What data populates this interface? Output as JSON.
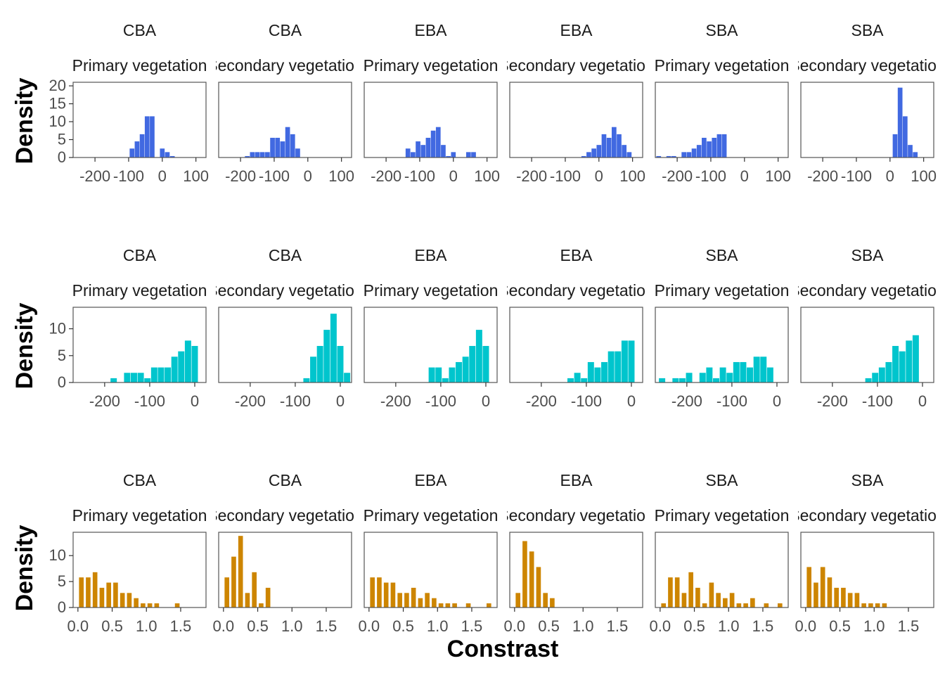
{
  "figure": {
    "x_label": "Constrast",
    "y_label": "Density",
    "colors": {
      "row1": "#4169E1",
      "row2": "#00C5CD",
      "row3": "#CD8500",
      "panel_border": "#555555",
      "axis_text": "#4D4D4D",
      "strip_text": "#1A1A1A"
    }
  },
  "chart_data": [
    {
      "type": "bar",
      "row": 1,
      "x_ticks": [
        -200,
        -100,
        0,
        100
      ],
      "x_tick_labels": [
        "-200",
        "-100",
        "0",
        "100"
      ],
      "y_ticks": [
        0,
        5,
        10,
        15,
        20
      ],
      "y_tick_labels": [
        "0",
        "5",
        "10",
        "15",
        "20"
      ],
      "xlim": [
        -265,
        130
      ],
      "ylim": [
        0,
        21
      ],
      "bin_width": 14,
      "panels": [
        {
          "strip_top": "CBA",
          "strip_bottom": "Primary vegetation",
          "x": [
            -90,
            -75,
            -60,
            -45,
            -30,
            0,
            15,
            30
          ],
          "values": [
            2.5,
            4.5,
            6.5,
            11.5,
            11.5,
            2.5,
            1.5,
            0.4
          ]
        },
        {
          "strip_top": "CBA",
          "strip_bottom": "Secondary vegetation",
          "x": [
            -180,
            -165,
            -150,
            -135,
            -120,
            -105,
            -90,
            -75,
            -60,
            -45,
            -30,
            -15,
            0
          ],
          "values": [
            0.4,
            1.5,
            1.5,
            1.5,
            1.5,
            5.5,
            5.5,
            4.5,
            8.5,
            6.5,
            2.5,
            0,
            0
          ]
        },
        {
          "strip_top": "EBA",
          "strip_bottom": "Primary vegetation",
          "x": [
            -135,
            -120,
            -105,
            -90,
            -75,
            -60,
            -45,
            -30,
            -15,
            0,
            15,
            30,
            45,
            60
          ],
          "values": [
            2.5,
            1.5,
            4.5,
            3.5,
            5.5,
            7.5,
            8.5,
            3.5,
            0.4,
            1.5,
            0,
            0,
            1.5,
            1.5
          ]
        },
        {
          "strip_top": "EBA",
          "strip_bottom": "Secondary vegetation",
          "x": [
            -45,
            -30,
            -15,
            0,
            15,
            30,
            45,
            60,
            75,
            90,
            105
          ],
          "values": [
            0.4,
            1.5,
            2.5,
            3.5,
            6.5,
            5.5,
            8.5,
            6.5,
            3.5,
            1.5,
            0
          ]
        },
        {
          "strip_top": "SBA",
          "strip_bottom": "Primary vegetation",
          "x": [
            -255,
            -225,
            -210,
            -195,
            -180,
            -165,
            -150,
            -135,
            -120,
            -105,
            -90,
            -75,
            -60,
            -45,
            -30
          ],
          "values": [
            0.4,
            0.4,
            0.4,
            0,
            1.5,
            1.5,
            2.5,
            3.5,
            5.5,
            4.5,
            5.5,
            6.5,
            6.5,
            0,
            0
          ]
        },
        {
          "strip_top": "SBA",
          "strip_bottom": "Secondary vegetation",
          "x": [
            15,
            30,
            45,
            60,
            75
          ],
          "values": [
            6.5,
            19.5,
            11.5,
            3.5,
            1.5
          ]
        }
      ]
    },
    {
      "type": "bar",
      "row": 2,
      "x_ticks": [
        -200,
        -100,
        0
      ],
      "x_tick_labels": [
        "-200",
        "-100",
        "0"
      ],
      "y_ticks": [
        0,
        5,
        10
      ],
      "y_tick_labels": [
        "0",
        "5",
        "10"
      ],
      "xlim": [
        -270,
        25
      ],
      "ylim": [
        0,
        14
      ],
      "bin_width": 14,
      "panels": [
        {
          "strip_top": "CBA",
          "strip_bottom": "Primary vegetation",
          "x": [
            -180,
            -165,
            -150,
            -135,
            -120,
            -105,
            -90,
            -75,
            -60,
            -45,
            -30,
            -15,
            0
          ],
          "values": [
            0.8,
            0,
            1.8,
            1.8,
            1.8,
            0.8,
            2.8,
            2.8,
            2.8,
            4.8,
            5.8,
            7.8,
            6.8
          ]
        },
        {
          "strip_top": "CBA",
          "strip_bottom": "Secondary vegetation",
          "x": [
            -75,
            -60,
            -45,
            -30,
            -15,
            0,
            15
          ],
          "values": [
            0.8,
            4.8,
            6.8,
            9.8,
            12.8,
            6.8,
            1.8
          ]
        },
        {
          "strip_top": "EBA",
          "strip_bottom": "Primary vegetation",
          "x": [
            -120,
            -105,
            -90,
            -75,
            -60,
            -45,
            -30,
            -15,
            0
          ],
          "values": [
            2.8,
            2.8,
            0.8,
            2.8,
            3.8,
            4.8,
            6.8,
            9.8,
            6.8
          ]
        },
        {
          "strip_top": "EBA",
          "strip_bottom": "Secondary vegetation",
          "x": [
            -135,
            -120,
            -105,
            -90,
            -75,
            -60,
            -45,
            -30,
            -15,
            0
          ],
          "values": [
            0.8,
            1.8,
            0.8,
            3.8,
            2.8,
            3.8,
            5.8,
            5.8,
            7.8,
            7.8
          ]
        },
        {
          "strip_top": "SBA",
          "strip_bottom": "Primary vegetation",
          "x": [
            -255,
            -240,
            -225,
            -210,
            -195,
            -180,
            -165,
            -150,
            -135,
            -120,
            -105,
            -90,
            -75,
            -60,
            -45,
            -30,
            -15
          ],
          "values": [
            0.8,
            0,
            0.8,
            0.8,
            1.8,
            0,
            1.8,
            2.8,
            0.8,
            2.8,
            1.8,
            3.8,
            3.8,
            2.8,
            4.8,
            4.8,
            2.8
          ]
        },
        {
          "strip_top": "SBA",
          "strip_bottom": "Secondary vegetation",
          "x": [
            -120,
            -105,
            -90,
            -75,
            -60,
            -45,
            -30,
            -15,
            0
          ],
          "values": [
            0.8,
            1.8,
            2.8,
            3.8,
            6.8,
            5.8,
            7.8,
            8.8,
            0
          ]
        }
      ]
    },
    {
      "type": "bar",
      "row": 3,
      "x_ticks": [
        0.0,
        0.5,
        1.0,
        1.5
      ],
      "x_tick_labels": [
        "0.0",
        "0.5",
        "1.0",
        "1.5"
      ],
      "y_ticks": [
        0,
        5,
        10
      ],
      "y_tick_labels": [
        "0",
        "5",
        "10"
      ],
      "xlim": [
        -0.07,
        1.87
      ],
      "ylim": [
        0,
        14.5
      ],
      "bin_width": 0.068,
      "panels": [
        {
          "strip_top": "CBA",
          "strip_bottom": "Primary vegetation",
          "x": [
            0.05,
            0.15,
            0.25,
            0.35,
            0.45,
            0.55,
            0.65,
            0.75,
            0.85,
            0.95,
            1.05,
            1.15,
            1.45
          ],
          "values": [
            5.8,
            5.8,
            6.8,
            3.8,
            4.8,
            4.8,
            2.8,
            2.8,
            1.8,
            0.8,
            0.8,
            0.8,
            0.8
          ]
        },
        {
          "strip_top": "CBA",
          "strip_bottom": "Secondary vegetation",
          "x": [
            0.05,
            0.15,
            0.25,
            0.35,
            0.45,
            0.55,
            0.65
          ],
          "values": [
            5.8,
            9.8,
            13.8,
            2.8,
            6.8,
            0.8,
            3.8
          ]
        },
        {
          "strip_top": "EBA",
          "strip_bottom": "Primary vegetation",
          "x": [
            0.05,
            0.15,
            0.25,
            0.35,
            0.45,
            0.55,
            0.65,
            0.75,
            0.85,
            0.95,
            1.05,
            1.15,
            1.25,
            1.45,
            1.75
          ],
          "values": [
            5.8,
            5.8,
            4.8,
            4.8,
            2.8,
            2.8,
            3.8,
            1.8,
            2.8,
            1.8,
            0.8,
            0.8,
            0.8,
            0.8,
            0.8
          ]
        },
        {
          "strip_top": "EBA",
          "strip_bottom": "Secondary vegetation",
          "x": [
            0.05,
            0.15,
            0.25,
            0.35,
            0.45,
            0.55
          ],
          "values": [
            2.8,
            12.8,
            10.8,
            7.8,
            2.8,
            1.8
          ]
        },
        {
          "strip_top": "SBA",
          "strip_bottom": "Primary vegetation",
          "x": [
            0.05,
            0.15,
            0.25,
            0.35,
            0.45,
            0.55,
            0.65,
            0.75,
            0.85,
            0.95,
            1.05,
            1.15,
            1.25,
            1.35,
            1.55,
            1.75
          ],
          "values": [
            0.8,
            5.8,
            5.8,
            2.8,
            6.8,
            3.8,
            0.8,
            4.8,
            2.8,
            1.8,
            2.8,
            0.8,
            0.8,
            1.8,
            0.8,
            0.8
          ]
        },
        {
          "strip_top": "SBA",
          "strip_bottom": "Secondary vegetation",
          "x": [
            0.05,
            0.15,
            0.25,
            0.35,
            0.45,
            0.55,
            0.65,
            0.75,
            0.85,
            0.95,
            1.05,
            1.15
          ],
          "values": [
            7.8,
            4.8,
            7.8,
            5.8,
            3.8,
            3.8,
            2.8,
            2.8,
            0.8,
            0.8,
            0.8,
            0.8
          ]
        }
      ]
    }
  ]
}
